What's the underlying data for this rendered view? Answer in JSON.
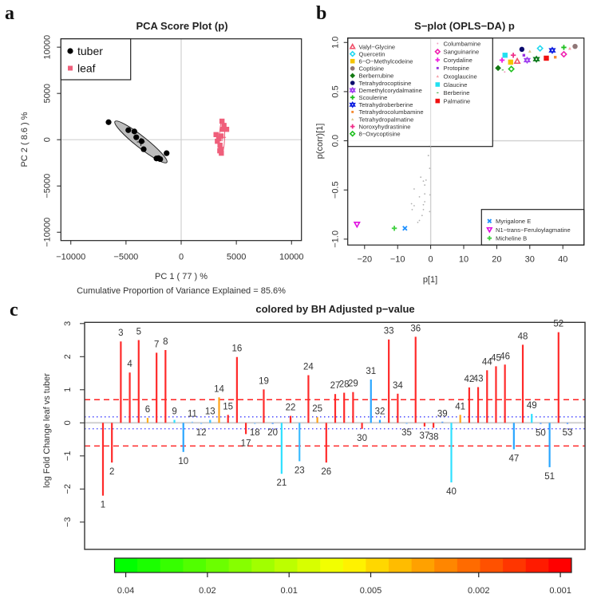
{
  "panel_labels": {
    "a": "a",
    "b": "b",
    "c": "c"
  },
  "chart_data": [
    {
      "type": "scatter",
      "id": "pca",
      "title": "PCA Score Plot (p)",
      "xlabel": "PC 1  ( 77 ) %",
      "ylabel": "PC 2  ( 8.6 ) %",
      "footnote": "Cumulative Proportion of Variance Explained = 85.6%",
      "xlim": [
        -10900,
        10900
      ],
      "ylim": [
        -10900,
        10900
      ],
      "xticks": [
        -10000,
        -5000,
        0,
        5000,
        10000
      ],
      "xtick_labels": [
        "−10000",
        "−5000",
        "0",
        "5000",
        "10000"
      ],
      "yticks": [
        -10000,
        -5000,
        0,
        5000,
        10000
      ],
      "ytick_labels": [
        "−10000",
        "−5000",
        "0",
        "5000",
        "10000"
      ],
      "reference_lines": {
        "x": 0,
        "y": 0
      },
      "legend_position": "top-left",
      "series": [
        {
          "name": "tuber",
          "color": "#000000",
          "marker": "circle",
          "points": [
            [
              -6580,
              1890
            ],
            [
              -4790,
              1030
            ],
            [
              -4240,
              890
            ],
            [
              -4070,
              260
            ],
            [
              -3590,
              -170
            ],
            [
              -3400,
              -1030
            ],
            [
              -2240,
              -2030
            ],
            [
              -1900,
              -2100
            ],
            [
              -2050,
              -2000
            ],
            [
              -1320,
              -1460
            ]
          ],
          "ellipse": {
            "center": [
              -3650,
              -240
            ],
            "major_end": [
              -6000,
              1970
            ],
            "minor_ratio": 0.17,
            "fill": "#bdbdbd"
          }
        },
        {
          "name": "leaf",
          "color": "#ef5f7b",
          "marker": "square",
          "points": [
            [
              3160,
              550
            ],
            [
              3760,
              1120
            ],
            [
              3400,
              110
            ],
            [
              3520,
              -600
            ],
            [
              3640,
              -1460
            ],
            [
              3590,
              -1030
            ],
            [
              3880,
              1540
            ],
            [
              3280,
              -170
            ],
            [
              4120,
              1120
            ],
            [
              3700,
              2000
            ],
            [
              3620,
              400
            ],
            [
              3500,
              -1200
            ]
          ],
          "ellipse": {
            "center": [
              3700,
              250
            ],
            "major_end": [
              3760,
              2150
            ],
            "minor_ratio": 0.15,
            "fill": "none"
          }
        }
      ]
    },
    {
      "type": "scatter",
      "id": "splot",
      "title": "S−plot (OPLS−DA) p",
      "xlabel": "p[1]",
      "ylabel": "p(corr)[1]",
      "xlim": [
        -25.1,
        46.4
      ],
      "ylim": [
        -1.06,
        1.045
      ],
      "xticks": [
        -20,
        -10,
        0,
        10,
        20,
        30,
        40
      ],
      "xtick_labels": [
        "−20",
        "−10",
        "0",
        "10",
        "20",
        "30",
        "40"
      ],
      "yticks": [
        -1,
        -0.5,
        0,
        0.5,
        1
      ],
      "ytick_labels": [
        "−1.0",
        "−0.5",
        "0.0",
        "0.5",
        "1.0"
      ],
      "reference_lines": {
        "x": 0,
        "y": 0
      },
      "legend_positions": [
        "top-left",
        "bottom-right"
      ],
      "named_points": [
        {
          "name": "Valyl−Glycine",
          "marker": "triangle-open",
          "color": "#f0506a",
          "x": 26.2,
          "y": 0.81,
          "legend": 1
        },
        {
          "name": "Quercetin",
          "marker": "diamond-open",
          "color": "#22d8f0",
          "x": 33.1,
          "y": 0.94,
          "legend": 1
        },
        {
          "name": "6−O−Methylcodeine",
          "marker": "square",
          "color": "#f5c400",
          "x": 24.2,
          "y": 0.8,
          "legend": 1
        },
        {
          "name": "Coptisine",
          "marker": "circle",
          "color": "#8f7676",
          "x": 43.7,
          "y": 0.96,
          "legend": 1
        },
        {
          "name": "Berberrubine",
          "marker": "diamond",
          "color": "#137a13",
          "x": 20.4,
          "y": 0.74,
          "legend": 1
        },
        {
          "name": "Tetrahydrocoptisine",
          "marker": "circle",
          "color": "#0a0a6e",
          "x": 27.6,
          "y": 0.93,
          "legend": 1
        },
        {
          "name": "Demethylcorydalmatine",
          "marker": "star",
          "color": "#a040f0",
          "x": 29.2,
          "y": 0.82,
          "legend": 1
        },
        {
          "name": "Scoulerine",
          "marker": "plus",
          "color": "#20c020",
          "x": 40.3,
          "y": 0.95,
          "legend": 1
        },
        {
          "name": "Tetrahydroberberine",
          "marker": "star",
          "color": "#1020e0",
          "x": 36.8,
          "y": 0.92,
          "legend": 1
        },
        {
          "name": "Tetrahydrocolumbamine",
          "marker": "small-square",
          "color": "#f58a30",
          "x": 37.7,
          "y": 0.85,
          "legend": 1
        },
        {
          "name": "Tetrahydropalmatine",
          "marker": "small-triangle",
          "color": "#d8c890",
          "x": 30.0,
          "y": 0.91,
          "legend": 1
        },
        {
          "name": "Noroxyhydrastinine",
          "marker": "plus",
          "color": "#f0308a",
          "x": 25.0,
          "y": 0.87,
          "legend": 1
        },
        {
          "name": "8−Oxycoptisine",
          "marker": "diamond-open",
          "color": "#20c020",
          "x": 24.4,
          "y": 0.73,
          "legend": 1
        },
        {
          "name": "Columbamine",
          "marker": "dot",
          "color": "#f0a0c0",
          "x": 22.4,
          "y": 0.7,
          "legend": 2
        },
        {
          "name": "Sanguinarine",
          "marker": "diamond-open",
          "color": "#f020b0",
          "x": 40.3,
          "y": 0.88,
          "legend": 2
        },
        {
          "name": "Corydaline",
          "marker": "plus",
          "color": "#f020e0",
          "x": 21.6,
          "y": 0.82,
          "legend": 2
        },
        {
          "name": "Protopine",
          "marker": "small-square",
          "color": "#9a30e0",
          "x": 28.2,
          "y": 0.87,
          "legend": 2
        },
        {
          "name": "Oxoglaucine",
          "marker": "small-triangle",
          "color": "#f8a0a8",
          "x": 42.1,
          "y": 0.94,
          "legend": 2
        },
        {
          "name": "Glaucine",
          "marker": "square",
          "color": "#22e0f0",
          "x": 22.5,
          "y": 0.87,
          "legend": 2
        },
        {
          "name": "Berberine",
          "marker": "dash",
          "color": "#30a030",
          "x": 21.8,
          "y": 0.72,
          "legend": 2
        },
        {
          "name": "Palmatine",
          "marker": "square",
          "color": "#f01010",
          "x": 35.0,
          "y": 0.84,
          "legend": 2
        },
        {
          "name": "Myrigalone E",
          "marker": "x",
          "color": "#1e90ff",
          "x": -7.8,
          "y": -0.89,
          "legend": 3
        },
        {
          "name": "N1−trans−Feruloylagmatine",
          "marker": "triangle-down-open",
          "color": "#e010e0",
          "x": -22.3,
          "y": -0.85,
          "legend": 3
        },
        {
          "name": "Micheline B",
          "marker": "plus",
          "color": "#40d040",
          "x": -11.0,
          "y": -0.89,
          "legend": 3
        }
      ],
      "unlabeled_points": [
        {
          "marker": "star",
          "color": "#0c7a1c",
          "x": 32.0,
          "y": 0.83
        }
      ],
      "grey_points": {
        "color": "#b0b0b0",
        "points": [
          [
            -3.0,
            -0.37
          ],
          [
            -2.2,
            -0.41
          ],
          [
            -1.4,
            -0.4
          ],
          [
            -1.8,
            -0.45
          ],
          [
            -5.0,
            -0.49
          ],
          [
            -1.8,
            -0.54
          ],
          [
            -3.4,
            -0.57
          ],
          [
            -1.8,
            -0.62
          ],
          [
            -2.2,
            -0.65
          ],
          [
            -5.8,
            -0.64
          ],
          [
            -5.0,
            -0.66
          ],
          [
            -2.2,
            -0.7
          ],
          [
            -5.6,
            -0.7
          ],
          [
            -2.6,
            -0.76
          ],
          [
            -3.4,
            -0.81
          ],
          [
            -3.9,
            -0.83
          ],
          [
            -0.7,
            -0.15
          ],
          [
            -0.4,
            -0.05
          ],
          [
            -0.3,
            -0.28
          ],
          [
            -0.2,
            -0.55
          ],
          [
            -0.3,
            -0.72
          ]
        ]
      }
    },
    {
      "type": "bar",
      "id": "fold",
      "title": "colored by  BH  Adjusted p−value",
      "ylabel": "log Fold Change  leaf vs tuber",
      "ylim": [
        -3.0,
        3.0
      ],
      "yticks": [
        -3,
        -2,
        -1,
        0,
        1,
        2,
        3
      ],
      "ytick_labels": [
        "−3",
        "−2",
        "−1",
        "0",
        "1",
        "2",
        "3"
      ],
      "thresholds": {
        "red_dashed": [
          0.7,
          -0.7
        ],
        "blue_dotted": [
          0.18,
          -0.18
        ]
      },
      "bars": [
        {
          "label": "1",
          "value": -2.2,
          "color": "#ff2a2a"
        },
        {
          "label": "2",
          "value": -1.2,
          "color": "#ff2a2a"
        },
        {
          "label": "3",
          "value": 2.46,
          "color": "#ff2a2a"
        },
        {
          "label": "4",
          "value": 1.52,
          "color": "#ff2a2a"
        },
        {
          "label": "5",
          "value": 2.5,
          "color": "#ff2a2a"
        },
        {
          "label": "6",
          "value": 0.15,
          "color": "#ffb020"
        },
        {
          "label": "7",
          "value": 2.12,
          "color": "#ff2a2a"
        },
        {
          "label": "8",
          "value": 2.2,
          "color": "#ff2a2a"
        },
        {
          "label": "9",
          "value": 0.09,
          "color": "#2ee0ff"
        },
        {
          "label": "10",
          "value": -0.88,
          "color": "#2aa6ff"
        },
        {
          "label": "11",
          "value": 0.02,
          "color": "#8fc8ff"
        },
        {
          "label": "12",
          "value": -0.02,
          "color": "#8fc8ff"
        },
        {
          "label": "13",
          "value": 0.09,
          "color": "#3cc0ff"
        },
        {
          "label": "14",
          "value": 0.77,
          "color": "#ffa31a"
        },
        {
          "label": "15",
          "value": 0.24,
          "color": "#ff2a2a"
        },
        {
          "label": "16",
          "value": 1.99,
          "color": "#ff2a2a"
        },
        {
          "label": "17",
          "value": -0.34,
          "color": "#ff2a2a"
        },
        {
          "label": "18",
          "value": -0.02,
          "color": "#8fc8ff"
        },
        {
          "label": "19",
          "value": 1.01,
          "color": "#ff2a2a"
        },
        {
          "label": "20",
          "value": -0.02,
          "color": "#5aa0ff"
        },
        {
          "label": "21",
          "value": -1.54,
          "color": "#2ee0ff"
        },
        {
          "label": "22",
          "value": 0.21,
          "color": "#ff2a2a"
        },
        {
          "label": "23",
          "value": -1.16,
          "color": "#3cbcff"
        },
        {
          "label": "24",
          "value": 1.44,
          "color": "#ff2a2a"
        },
        {
          "label": "25",
          "value": 0.17,
          "color": "#ffa31a"
        },
        {
          "label": "26",
          "value": -1.2,
          "color": "#ff2a2a"
        },
        {
          "label": "27",
          "value": 0.87,
          "color": "#ff2a2a"
        },
        {
          "label": "28",
          "value": 0.91,
          "color": "#ff2a2a"
        },
        {
          "label": "29",
          "value": 0.93,
          "color": "#ff2a2a"
        },
        {
          "label": "30",
          "value": -0.18,
          "color": "#ff2a2a"
        },
        {
          "label": "31",
          "value": 1.31,
          "color": "#2aa6ff"
        },
        {
          "label": "32",
          "value": 0.09,
          "color": "#2aa6ff"
        },
        {
          "label": "33",
          "value": 2.52,
          "color": "#ff2a2a"
        },
        {
          "label": "34",
          "value": 0.88,
          "color": "#ff2a2a"
        },
        {
          "label": "35",
          "value": -0.02,
          "color": "#8fc8ff"
        },
        {
          "label": "36",
          "value": 2.6,
          "color": "#ff2a2a"
        },
        {
          "label": "37",
          "value": -0.11,
          "color": "#ff2a2a"
        },
        {
          "label": "38",
          "value": -0.15,
          "color": "#ff2a2a"
        },
        {
          "label": "39",
          "value": 0.02,
          "color": "#5aa0ff"
        },
        {
          "label": "40",
          "value": -1.8,
          "color": "#2ee0ff"
        },
        {
          "label": "41",
          "value": 0.24,
          "color": "#ffa31a"
        },
        {
          "label": "42",
          "value": 1.07,
          "color": "#ff2a2a"
        },
        {
          "label": "43",
          "value": 1.08,
          "color": "#ff2a2a"
        },
        {
          "label": "44",
          "value": 1.59,
          "color": "#ff2a2a"
        },
        {
          "label": "45",
          "value": 1.71,
          "color": "#ff2a2a"
        },
        {
          "label": "46",
          "value": 1.76,
          "color": "#ff2a2a"
        },
        {
          "label": "47",
          "value": -0.8,
          "color": "#2aa6ff"
        },
        {
          "label": "48",
          "value": 2.36,
          "color": "#ff2a2a"
        },
        {
          "label": "49",
          "value": 0.27,
          "color": "#2ee0ff"
        },
        {
          "label": "50",
          "value": -0.03,
          "color": "#5aa0ff"
        },
        {
          "label": "51",
          "value": -1.34,
          "color": "#2aa6ff"
        },
        {
          "label": "52",
          "value": 2.74,
          "color": "#ff2a2a"
        },
        {
          "label": "53",
          "value": -0.02,
          "color": "#5aa0ff"
        }
      ],
      "colorbar": {
        "scale": "log",
        "range": [
          0.044,
          0.00091
        ],
        "colors": [
          "#00ff00",
          "#ffff00",
          "#ff0000"
        ],
        "steps": 20,
        "ticks": [
          0.04,
          0.02,
          0.01,
          0.005,
          0.002,
          0.001
        ],
        "tick_labels": [
          "0.04",
          "0.02",
          "0.01",
          "0.005",
          "0.002",
          "0.001"
        ]
      }
    }
  ]
}
